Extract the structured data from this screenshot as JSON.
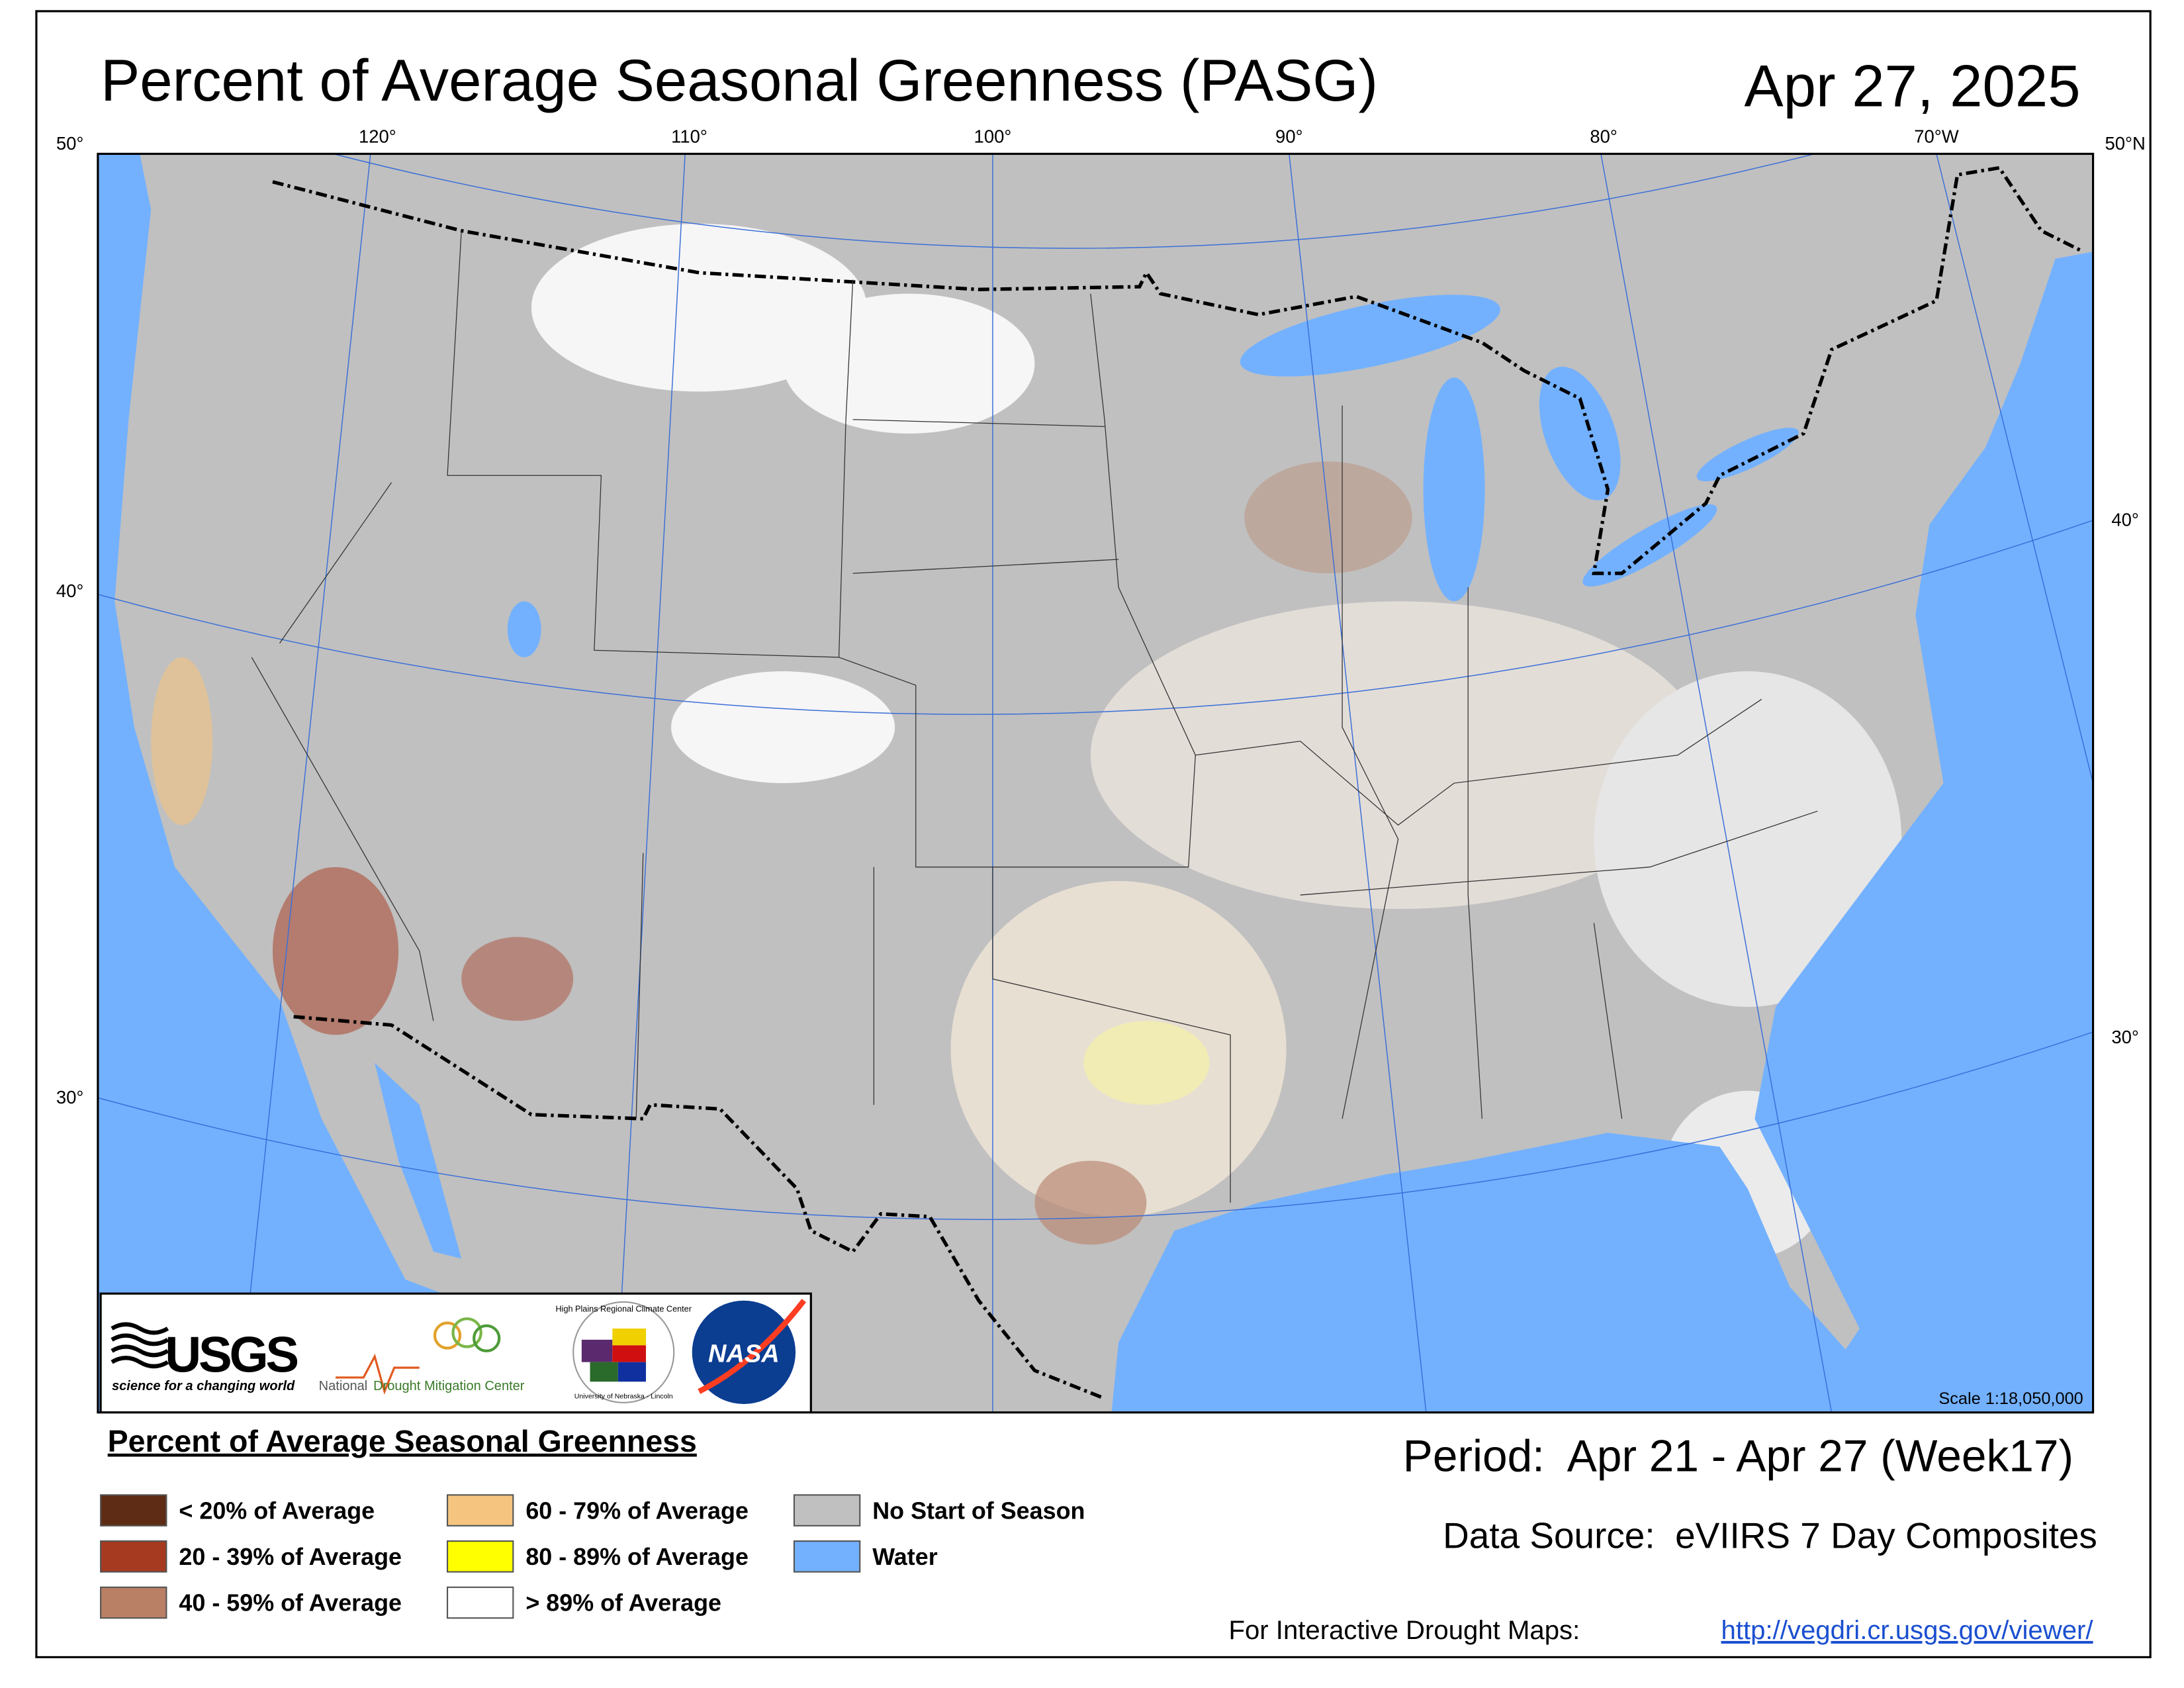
{
  "header": {
    "title": "Percent of Average Seasonal Greenness (PASG)",
    "date": "Apr 27, 2025"
  },
  "map": {
    "graticule_labels": {
      "top": [
        "50°",
        "120°",
        "110°",
        "100°",
        "90°",
        "80°",
        "70°W",
        "50°N"
      ],
      "left": [
        "40°",
        "30°"
      ],
      "right": [
        "40°",
        "30°"
      ]
    },
    "scale": "Scale 1:18,050,000"
  },
  "logos": {
    "usgs": "USGS",
    "usgs_tagline": "science for a changing world",
    "ndmc_1": "National",
    "ndmc_2": "Drought Mitigation Center",
    "hprcc": "High Plains Regional Climate Center",
    "unl": "University of Nebraska - Lincoln",
    "nasa": "NASA"
  },
  "legend": {
    "title": "Percent of Average Seasonal Greenness",
    "items": [
      {
        "label": "< 20% of Average",
        "color": "#5e2c14"
      },
      {
        "label": "20 - 39% of Average",
        "color": "#a63a20"
      },
      {
        "label": "40 - 59% of Average",
        "color": "#b98066"
      },
      {
        "label": "60 - 79% of Average",
        "color": "#f5c580"
      },
      {
        "label": "80 - 89% of Average",
        "color": "#ffff00"
      },
      {
        "label": "> 89% of Average",
        "color": "#ffffff"
      },
      {
        "label": "No Start of Season",
        "color": "#c0c0c0"
      },
      {
        "label": "Water",
        "color": "#73b1ff"
      }
    ]
  },
  "footer": {
    "period": "Period:  Apr 21 - Apr 27 (Week17)",
    "data_source": "Data Source:  eVIIRS 7 Day Composites",
    "interactive": "For Interactive Drought Maps:",
    "url": "http://vegdri.cr.usgs.gov/viewer/"
  }
}
